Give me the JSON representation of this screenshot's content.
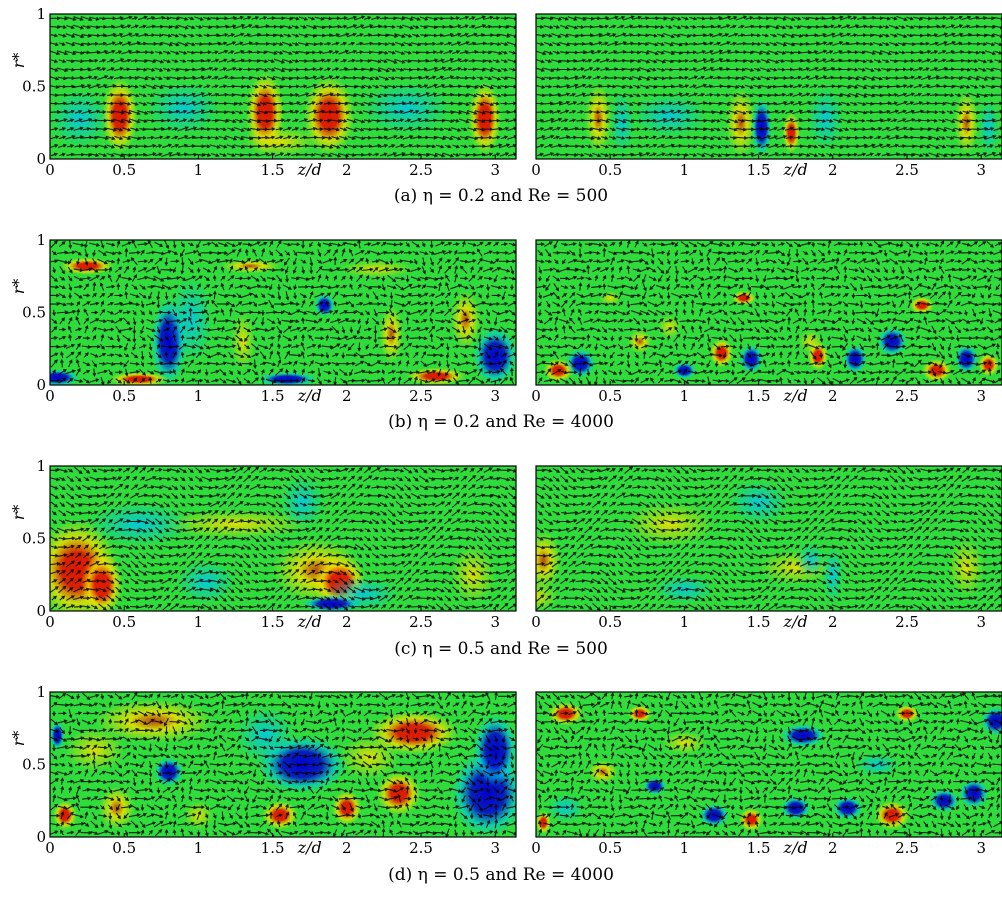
{
  "figure": {
    "rows": [
      {
        "caption": "(a) η = 0.2 and Re = 500",
        "eta": 0.2,
        "Re": 500,
        "pattern": "a"
      },
      {
        "caption": "(b) η = 0.2 and Re = 4000",
        "eta": 0.2,
        "Re": 4000,
        "pattern": "b"
      },
      {
        "caption": "(c) η = 0.5 and Re = 500",
        "eta": 0.5,
        "Re": 500,
        "pattern": "c"
      },
      {
        "caption": "(d) η = 0.5 and Re = 4000",
        "eta": 0.5,
        "Re": 4000,
        "pattern": "d"
      }
    ]
  },
  "chart_data": {
    "type": "heatmap",
    "xlabel": "z/d",
    "ylabel": "r*",
    "xlim": [
      0,
      3.14
    ],
    "ylim": [
      0,
      1
    ],
    "x_ticks": [
      "0",
      "0.5",
      "1",
      "1.5",
      "2",
      "2.5",
      "3"
    ],
    "x_tick_values": [
      0,
      0.5,
      1,
      1.5,
      2,
      2.5,
      3
    ],
    "y_ticks": [
      "0",
      "0.5",
      "1"
    ],
    "y_tick_values": [
      0,
      0.5,
      1
    ],
    "overlay": "velocity vector field (arrows)",
    "colormap": [
      "#0000d0",
      "#00c8e6",
      "#2fdc3c",
      "#f0e000",
      "#e01800"
    ],
    "background_color": "#2fdc3c",
    "panels_per_row": 2
  }
}
